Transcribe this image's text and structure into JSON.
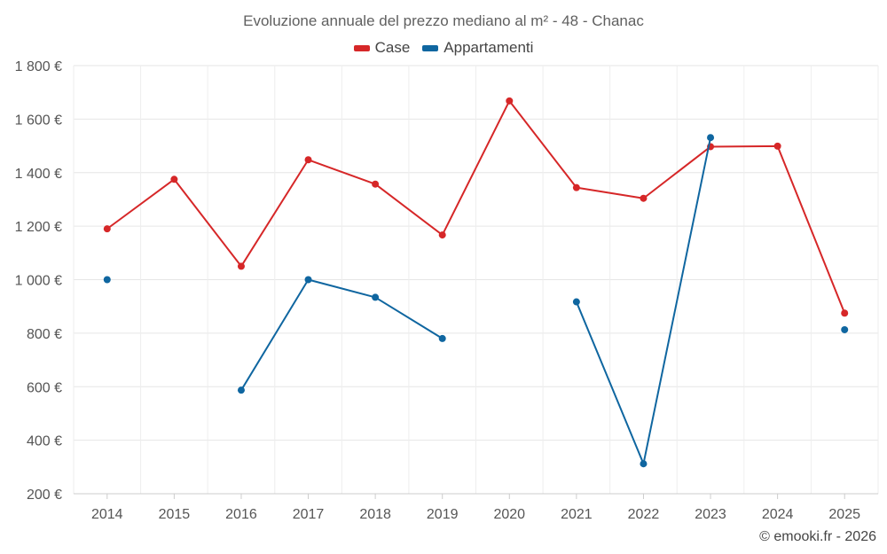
{
  "chart_data": {
    "type": "line",
    "title": "Evoluzione annuale del prezzo mediano al m² - 48 - Chanac",
    "xlabel": "",
    "ylabel": "",
    "categories": [
      "2014",
      "2015",
      "2016",
      "2017",
      "2018",
      "2019",
      "2020",
      "2021",
      "2022",
      "2023",
      "2024",
      "2025"
    ],
    "ylim": [
      200,
      1800
    ],
    "yticks": [
      200,
      400,
      600,
      800,
      1000,
      1200,
      1400,
      1600,
      1800
    ],
    "ytick_labels": [
      "200 €",
      "400 €",
      "600 €",
      "800 €",
      "1 000 €",
      "1 200 €",
      "1 400 €",
      "1 600 €",
      "1 800 €"
    ],
    "grid": true,
    "legend_position": "top-center",
    "series": [
      {
        "name": "Case",
        "color": "#d62728",
        "values": [
          1190,
          1375,
          1050,
          1448,
          1357,
          1167,
          1668,
          1344,
          1304,
          1497,
          1499,
          875
        ]
      },
      {
        "name": "Appartamenti",
        "color": "#0f66a0",
        "values": [
          1000,
          null,
          587,
          1000,
          934,
          780,
          null,
          917,
          312,
          1531,
          null,
          813
        ]
      }
    ]
  },
  "credit": "© emooki.fr - 2026"
}
